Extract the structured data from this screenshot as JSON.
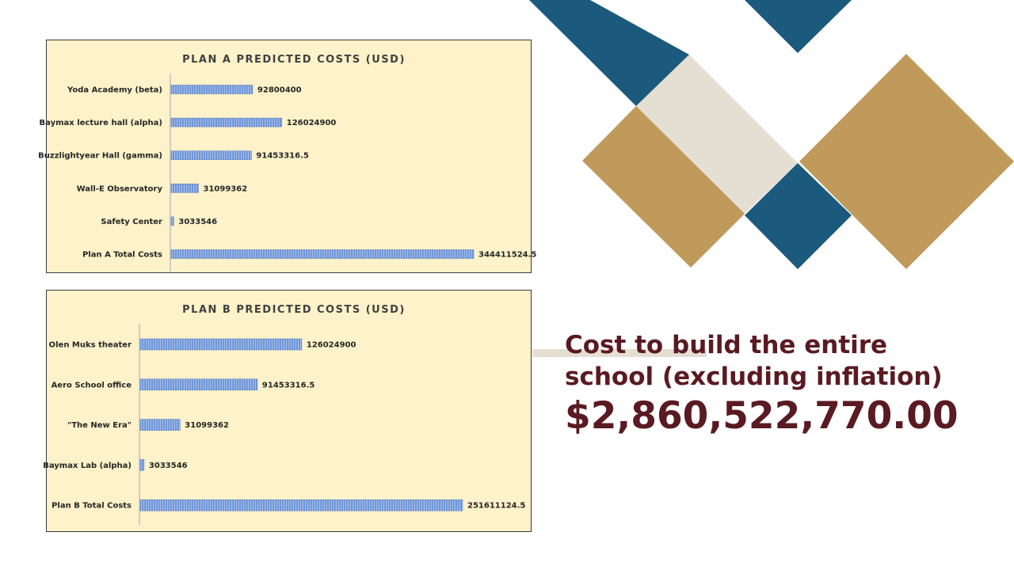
{
  "colors": {
    "navy": "#1b5a7d",
    "gold": "#c09a5b",
    "beige": "#e5ded3",
    "maroon": "#5a1a22",
    "chart_bg": "#fdf2c9",
    "bar": "#6f96d6"
  },
  "headline": {
    "line1": "Cost to build the entire",
    "line2": "school (excluding inflation)",
    "amount": "$2,860,522,770.00"
  },
  "chart_data": [
    {
      "type": "bar",
      "orientation": "horizontal",
      "title": "PLAN A PREDICTED COSTS (USD)",
      "categories": [
        "Yoda Academy (beta)",
        "Baymax lecture hall (alpha)",
        "Buzzlightyear Hall (gamma)",
        "Wall-E Observatory",
        "Safety Center",
        "Plan A Total Costs"
      ],
      "values": [
        92800400,
        126024900,
        91453316.5,
        31099362,
        3033546,
        344411524.5
      ],
      "value_labels": [
        "92800400",
        "126024900",
        "91453316.5",
        "31099362",
        "3033546",
        "344411524.5"
      ],
      "xlim": [
        0,
        344411524.5
      ],
      "grid": false,
      "legend": "none"
    },
    {
      "type": "bar",
      "orientation": "horizontal",
      "title": "PLAN B PREDICTED COSTS (USD)",
      "categories": [
        "Olen Muks theater",
        "Aero School office",
        "\"The New Era\"",
        "Baymax Lab (alpha)",
        "Plan B Total Costs"
      ],
      "values": [
        126024900,
        91453316.5,
        31099362,
        3033546,
        251611124.5
      ],
      "value_labels": [
        "126024900",
        "91453316.5",
        "31099362",
        "3033546",
        "251611124.5"
      ],
      "xlim": [
        0,
        251611124.5
      ],
      "grid": false,
      "legend": "none"
    }
  ]
}
